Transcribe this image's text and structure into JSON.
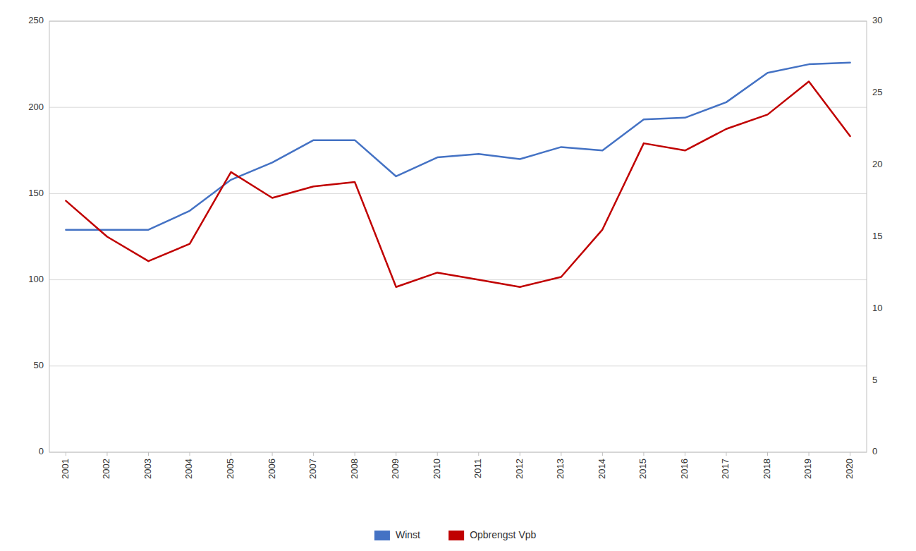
{
  "chart_data": {
    "type": "line",
    "x": [
      2001,
      2002,
      2003,
      2004,
      2005,
      2006,
      2007,
      2008,
      2009,
      2010,
      2011,
      2012,
      2013,
      2014,
      2015,
      2016,
      2017,
      2018,
      2019,
      2020
    ],
    "series": [
      {
        "name": "Winst",
        "color": "#4472C4",
        "values": [
          129,
          129,
          129,
          140,
          158,
          168,
          181,
          181,
          160,
          171,
          173,
          170,
          177,
          175,
          193,
          194,
          203,
          220,
          225,
          226
        ]
      },
      {
        "name": "Opbrengst Vpb",
        "color": "#C00000",
        "axis": "y2",
        "values": [
          17.5,
          15.0,
          13.3,
          14.5,
          19.5,
          17.7,
          18.5,
          18.8,
          11.5,
          12.5,
          12.0,
          11.5,
          12.2,
          15.5,
          21.5,
          21.0,
          22.5,
          23.5,
          25.8,
          22.0
        ]
      }
    ],
    "xlim": [
      2000.6,
      2020.4
    ],
    "xticks": [
      2001,
      2002,
      2003,
      2004,
      2005,
      2006,
      2007,
      2008,
      2009,
      2010,
      2011,
      2012,
      2013,
      2014,
      2015,
      2016,
      2017,
      2018,
      2019,
      2020
    ],
    "ylim": [
      0,
      250
    ],
    "yticks": [
      0,
      50,
      100,
      150,
      200,
      250
    ],
    "y2lim": [
      0,
      30
    ],
    "y2ticks": [
      0,
      5,
      10,
      15,
      20,
      25,
      30
    ],
    "grid": true,
    "legend": "bottom"
  }
}
